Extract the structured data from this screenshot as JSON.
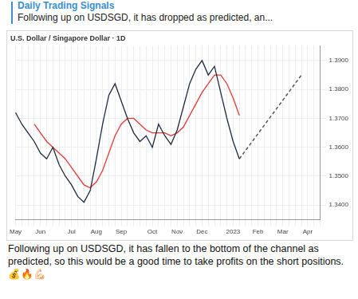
{
  "header": {
    "channel": "Daily Trading Signals",
    "preview": "Following up on USDSGD, it has dropped as predicted, an..."
  },
  "chart_data": {
    "type": "line",
    "title": "U.S. Dollar / Singapore Dollar · 1D",
    "categories": [
      "May",
      null,
      null,
      null,
      "Jun",
      null,
      null,
      null,
      null,
      "Jul",
      null,
      null,
      null,
      "Aug",
      null,
      null,
      null,
      "Sep",
      null,
      null,
      null,
      null,
      "Oct",
      null,
      null,
      null,
      "Nov",
      null,
      null,
      null,
      "Dec",
      null,
      null,
      null,
      null,
      "2023",
      null,
      null,
      null,
      "Feb",
      null,
      null,
      null,
      "Mar",
      null,
      null,
      null,
      "Apr",
      null,
      null
    ],
    "series": [
      {
        "color": "#1f2a3c",
        "line_style": "solid",
        "values": [
          1.372,
          1.368,
          1.365,
          1.362,
          1.358,
          1.356,
          1.36,
          1.354,
          1.35,
          1.347,
          1.343,
          1.341,
          1.345,
          1.356,
          1.368,
          1.378,
          1.382,
          1.376,
          1.37,
          1.365,
          1.362,
          1.364,
          1.36,
          1.368,
          1.364,
          1.361,
          1.366,
          1.374,
          1.382,
          1.387,
          1.39,
          1.385,
          1.388,
          1.379,
          1.37,
          1.362,
          1.356,
          null,
          null,
          null,
          null,
          null,
          null,
          null,
          null,
          null,
          null,
          null,
          null,
          null
        ]
      },
      {
        "color": "#e53935",
        "line_style": "solid",
        "values": [
          null,
          null,
          null,
          1.368,
          1.365,
          1.362,
          1.36,
          1.358,
          1.356,
          1.353,
          1.35,
          1.347,
          1.346,
          1.348,
          1.352,
          1.358,
          1.364,
          1.368,
          1.37,
          1.37,
          1.368,
          1.366,
          1.365,
          1.365,
          1.365,
          1.364,
          1.365,
          1.367,
          1.371,
          1.375,
          1.379,
          1.382,
          1.385,
          1.385,
          1.382,
          1.377,
          1.371,
          null,
          null,
          null,
          null,
          null,
          null,
          null,
          null,
          null,
          null,
          null,
          null,
          null
        ]
      },
      {
        "color": "#555555",
        "line_style": "dashed",
        "values": [
          null,
          null,
          null,
          null,
          null,
          null,
          null,
          null,
          null,
          null,
          null,
          null,
          null,
          null,
          null,
          null,
          null,
          null,
          null,
          null,
          null,
          null,
          null,
          null,
          null,
          null,
          null,
          null,
          null,
          null,
          null,
          null,
          null,
          null,
          null,
          null,
          1.356,
          null,
          null,
          null,
          null,
          null,
          null,
          null,
          null,
          null,
          1.385,
          null,
          null,
          null
        ]
      }
    ],
    "ylim": [
      1.335,
      1.395
    ],
    "yticks": [
      {
        "value": 1.34,
        "label": "1.3400"
      },
      {
        "value": 1.35,
        "label": "1.3500"
      },
      {
        "value": 1.36,
        "label": "1.3600"
      },
      {
        "value": 1.37,
        "label": "1.3700"
      },
      {
        "value": 1.38,
        "label": "1.3800"
      },
      {
        "value": 1.39,
        "label": "1.3900"
      }
    ],
    "grid": true
  },
  "message": {
    "text": "Following up on USDSGD, it has fallen to the bottom of the channel as predicted, so this would be a good time to take profits on the short positions. 💰🔥💪🏻"
  }
}
